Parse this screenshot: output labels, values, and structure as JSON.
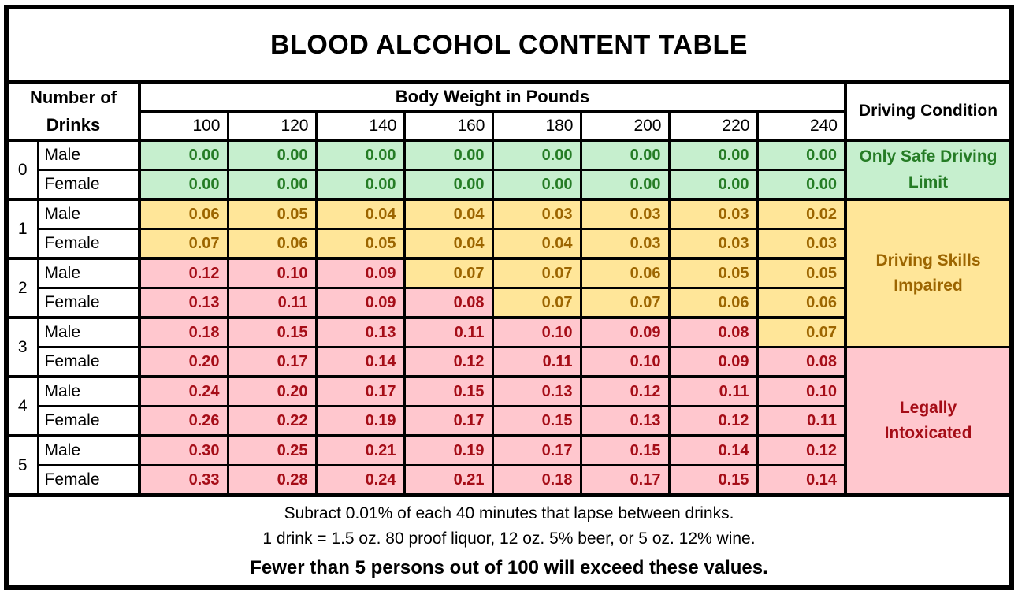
{
  "title": "BLOOD ALCOHOL CONTENT TABLE",
  "colors": {
    "border": "#000000",
    "green_bg": "#C6EFCE",
    "green_text": "#257C25",
    "yellow_bg": "#FFE699",
    "yellow_text": "#9C6500",
    "pink_bg": "#FFC7CE",
    "pink_text": "#A50D17"
  },
  "table": {
    "corner_header": {
      "line1": "Number of",
      "line2": "Drinks"
    },
    "weight_header": "Body Weight in Pounds",
    "weights": [
      "100",
      "120",
      "140",
      "160",
      "180",
      "200",
      "220",
      "240"
    ],
    "condition_header": "Driving Condition",
    "rows": [
      {
        "drinks": "0",
        "gender": "Male",
        "values": [
          "0.00",
          "0.00",
          "0.00",
          "0.00",
          "0.00",
          "0.00",
          "0.00",
          "0.00"
        ],
        "colors": [
          "g",
          "g",
          "g",
          "g",
          "g",
          "g",
          "g",
          "g"
        ]
      },
      {
        "drinks": "0",
        "gender": "Female",
        "values": [
          "0.00",
          "0.00",
          "0.00",
          "0.00",
          "0.00",
          "0.00",
          "0.00",
          "0.00"
        ],
        "colors": [
          "g",
          "g",
          "g",
          "g",
          "g",
          "g",
          "g",
          "g"
        ]
      },
      {
        "drinks": "1",
        "gender": "Male",
        "values": [
          "0.06",
          "0.05",
          "0.04",
          "0.04",
          "0.03",
          "0.03",
          "0.03",
          "0.02"
        ],
        "colors": [
          "y",
          "y",
          "y",
          "y",
          "y",
          "y",
          "y",
          "y"
        ]
      },
      {
        "drinks": "1",
        "gender": "Female",
        "values": [
          "0.07",
          "0.06",
          "0.05",
          "0.04",
          "0.04",
          "0.03",
          "0.03",
          "0.03"
        ],
        "colors": [
          "y",
          "y",
          "y",
          "y",
          "y",
          "y",
          "y",
          "y"
        ]
      },
      {
        "drinks": "2",
        "gender": "Male",
        "values": [
          "0.12",
          "0.10",
          "0.09",
          "0.07",
          "0.07",
          "0.06",
          "0.05",
          "0.05"
        ],
        "colors": [
          "p",
          "p",
          "p",
          "y",
          "y",
          "y",
          "y",
          "y"
        ]
      },
      {
        "drinks": "2",
        "gender": "Female",
        "values": [
          "0.13",
          "0.11",
          "0.09",
          "0.08",
          "0.07",
          "0.07",
          "0.06",
          "0.06"
        ],
        "colors": [
          "p",
          "p",
          "p",
          "p",
          "y",
          "y",
          "y",
          "y"
        ]
      },
      {
        "drinks": "3",
        "gender": "Male",
        "values": [
          "0.18",
          "0.15",
          "0.13",
          "0.11",
          "0.10",
          "0.09",
          "0.08",
          "0.07"
        ],
        "colors": [
          "p",
          "p",
          "p",
          "p",
          "p",
          "p",
          "p",
          "y"
        ]
      },
      {
        "drinks": "3",
        "gender": "Female",
        "values": [
          "0.20",
          "0.17",
          "0.14",
          "0.12",
          "0.11",
          "0.10",
          "0.09",
          "0.08"
        ],
        "colors": [
          "p",
          "p",
          "p",
          "p",
          "p",
          "p",
          "p",
          "p"
        ]
      },
      {
        "drinks": "4",
        "gender": "Male",
        "values": [
          "0.24",
          "0.20",
          "0.17",
          "0.15",
          "0.13",
          "0.12",
          "0.11",
          "0.10"
        ],
        "colors": [
          "p",
          "p",
          "p",
          "p",
          "p",
          "p",
          "p",
          "p"
        ]
      },
      {
        "drinks": "4",
        "gender": "Female",
        "values": [
          "0.26",
          "0.22",
          "0.19",
          "0.17",
          "0.15",
          "0.13",
          "0.12",
          "0.11"
        ],
        "colors": [
          "p",
          "p",
          "p",
          "p",
          "p",
          "p",
          "p",
          "p"
        ]
      },
      {
        "drinks": "5",
        "gender": "Male",
        "values": [
          "0.30",
          "0.25",
          "0.21",
          "0.19",
          "0.17",
          "0.15",
          "0.14",
          "0.12"
        ],
        "colors": [
          "p",
          "p",
          "p",
          "p",
          "p",
          "p",
          "p",
          "p"
        ]
      },
      {
        "drinks": "5",
        "gender": "Female",
        "values": [
          "0.33",
          "0.28",
          "0.24",
          "0.21",
          "0.18",
          "0.17",
          "0.15",
          "0.14"
        ],
        "colors": [
          "p",
          "p",
          "p",
          "p",
          "p",
          "p",
          "p",
          "p"
        ]
      }
    ],
    "conditions": [
      {
        "label": "Only Safe Driving Limit",
        "color": "g",
        "row_start": 0,
        "row_span": 2
      },
      {
        "label": "Driving Skills Impaired",
        "color": "y",
        "row_start": 2,
        "row_span": 5
      },
      {
        "label": "Legally Intoxicated",
        "color": "p",
        "row_start": 7,
        "row_span": 5
      }
    ]
  },
  "footer": {
    "lines": [
      "Subract 0.01% of each 40 minutes that lapse between drinks.",
      "1 drink = 1.5 oz. 80 proof liquor, 12 oz. 5% beer, or 5 oz. 12% wine.",
      "Fewer than 5 persons out of 100 will exceed these values."
    ]
  }
}
